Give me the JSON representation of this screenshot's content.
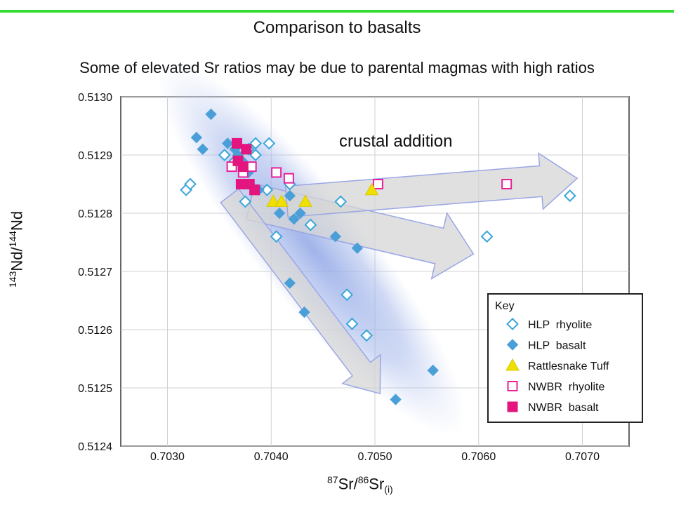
{
  "page": {
    "title": "Comparison to basalts",
    "subtitle": "Some of elevated Sr ratios may be due to parental magmas with high ratios",
    "accent_rule_color": "#33dd33"
  },
  "chart_data": {
    "type": "scatter",
    "xlabel": {
      "main": "Sr",
      "sup1": "87",
      "sup2": "86",
      "main2": "Sr",
      "sub": "(i)"
    },
    "ylabel": {
      "sup1": "143",
      "main": "Nd/",
      "sup2": "144",
      "main2": "Nd"
    },
    "xlim": [
      0.70255,
      0.70745
    ],
    "ylim": [
      0.5124,
      0.513
    ],
    "x_ticks": [
      "0.7030",
      "0.7040",
      "0.7050",
      "0.7060",
      "0.7070"
    ],
    "x_tick_values": [
      0.703,
      0.704,
      0.705,
      0.706,
      0.707
    ],
    "y_ticks": [
      "0.5124",
      "0.5125",
      "0.5126",
      "0.5127",
      "0.5128",
      "0.5129",
      "0.5130"
    ],
    "y_tick_values": [
      0.5124,
      0.5125,
      0.5126,
      0.5127,
      0.5128,
      0.5129,
      0.513
    ],
    "grid": true,
    "legend_position": "bottom-right",
    "legend_title": "Key",
    "annotations": [
      {
        "text": "crustal addition"
      }
    ],
    "arrows": [
      {
        "name": "crustal-addition-arrow",
        "from": [
          0.70415,
          0.51282
        ],
        "to": [
          0.70695,
          0.51286
        ]
      },
      {
        "name": "crustal-fan-arrow",
        "from": [
          0.7038,
          0.51282
        ],
        "to": [
          0.70595,
          0.51273
        ]
      },
      {
        "name": "basalt-trend-arrow",
        "from": [
          0.7036,
          0.51283
        ],
        "to": [
          0.70505,
          0.51249
        ]
      }
    ],
    "series": [
      {
        "name": "HLP  rhyolite",
        "marker": "diamond-open",
        "color": "#3aa6d8",
        "points": [
          [
            0.70318,
            0.51284
          ],
          [
            0.70322,
            0.51285
          ],
          [
            0.70355,
            0.5129
          ],
          [
            0.70365,
            0.51289
          ],
          [
            0.70374,
            0.51288
          ],
          [
            0.70378,
            0.51291
          ],
          [
            0.70385,
            0.51292
          ],
          [
            0.70385,
            0.5129
          ],
          [
            0.70398,
            0.51292
          ],
          [
            0.70375,
            0.51282
          ],
          [
            0.70396,
            0.51284
          ],
          [
            0.70405,
            0.51276
          ],
          [
            0.70418,
            0.51285
          ],
          [
            0.70438,
            0.51278
          ],
          [
            0.70467,
            0.51282
          ],
          [
            0.70473,
            0.51266
          ],
          [
            0.70478,
            0.51261
          ],
          [
            0.70492,
            0.51259
          ],
          [
            0.70608,
            0.51276
          ],
          [
            0.70688,
            0.51283
          ]
        ]
      },
      {
        "name": "HLP  basalt",
        "marker": "diamond-filled",
        "color": "#4a9fd8",
        "points": [
          [
            0.70328,
            0.51293
          ],
          [
            0.70334,
            0.51291
          ],
          [
            0.70342,
            0.51297
          ],
          [
            0.70358,
            0.51292
          ],
          [
            0.70365,
            0.51291
          ],
          [
            0.70368,
            0.5129
          ],
          [
            0.70372,
            0.51289
          ],
          [
            0.70378,
            0.51287
          ],
          [
            0.70388,
            0.51284
          ],
          [
            0.70408,
            0.5128
          ],
          [
            0.70418,
            0.51283
          ],
          [
            0.70422,
            0.51279
          ],
          [
            0.70428,
            0.5128
          ],
          [
            0.70418,
            0.51268
          ],
          [
            0.70432,
            0.51263
          ],
          [
            0.70462,
            0.51276
          ],
          [
            0.70483,
            0.51274
          ],
          [
            0.70556,
            0.51253
          ],
          [
            0.7052,
            0.51248
          ]
        ]
      },
      {
        "name": "Rattlesnake Tuff",
        "marker": "triangle-filled",
        "color": "#f0e000",
        "points": [
          [
            0.70402,
            0.51282
          ],
          [
            0.7041,
            0.51282
          ],
          [
            0.70433,
            0.51282
          ],
          [
            0.70497,
            0.51284
          ]
        ]
      },
      {
        "name": "NWBR  rhyolite",
        "marker": "square-open",
        "color": "#e8219a",
        "points": [
          [
            0.70362,
            0.51288
          ],
          [
            0.70373,
            0.51287
          ],
          [
            0.70381,
            0.51288
          ],
          [
            0.70405,
            0.51287
          ],
          [
            0.70417,
            0.51286
          ],
          [
            0.70503,
            0.51285
          ],
          [
            0.70627,
            0.51285
          ]
        ]
      },
      {
        "name": "NWBR  basalt",
        "marker": "square-filled",
        "color": "#e4157f",
        "points": [
          [
            0.70367,
            0.51292
          ],
          [
            0.70376,
            0.51291
          ],
          [
            0.70368,
            0.51289
          ],
          [
            0.70373,
            0.51288
          ],
          [
            0.70371,
            0.51285
          ],
          [
            0.70379,
            0.51285
          ],
          [
            0.70384,
            0.51284
          ]
        ]
      }
    ]
  }
}
